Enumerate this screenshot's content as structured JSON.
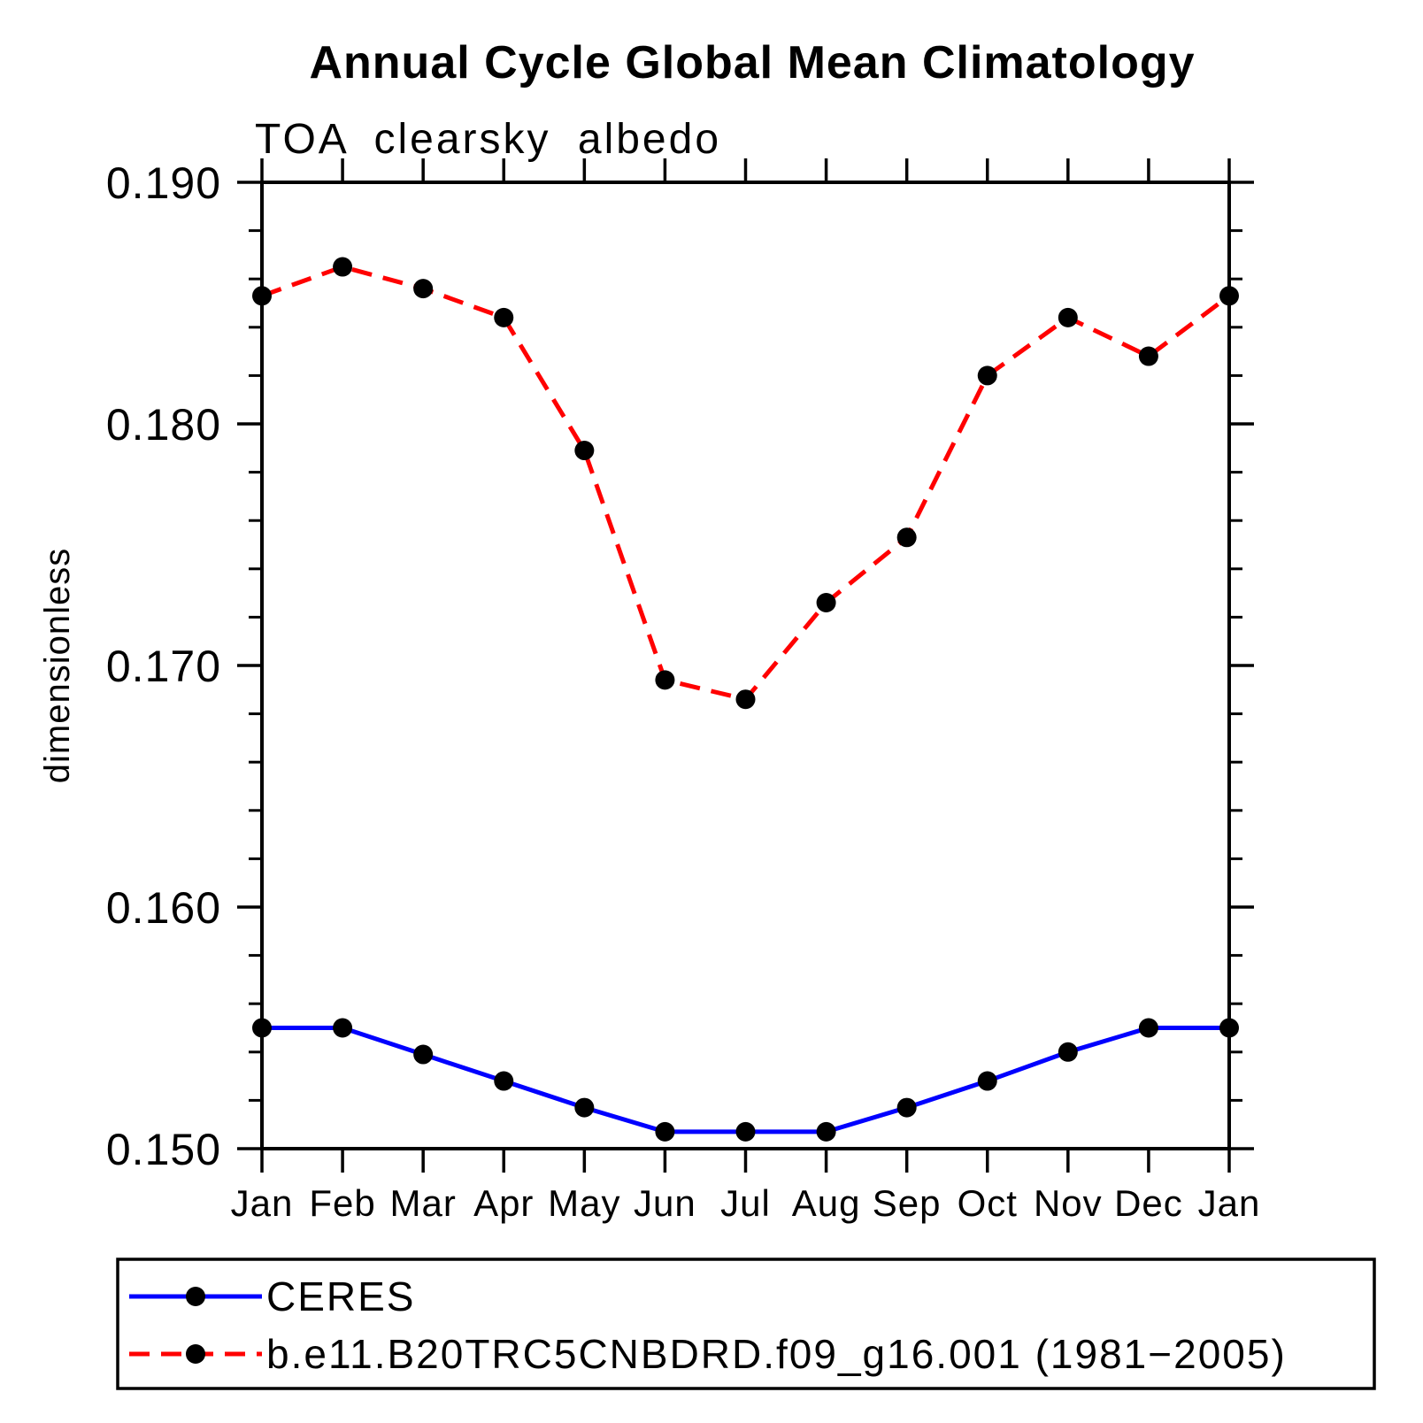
{
  "page_title": "Annual Cycle Global Mean Climatology",
  "chart_data": {
    "type": "line",
    "title": "Annual Cycle Global Mean Climatology",
    "subtitle": "TOA clearsky albedo",
    "ylabel": "dimensionless",
    "xlabel": "",
    "categories": [
      "Jan",
      "Feb",
      "Mar",
      "Apr",
      "May",
      "Jun",
      "Jul",
      "Aug",
      "Sep",
      "Oct",
      "Nov",
      "Dec",
      "Jan"
    ],
    "ylim": [
      0.15,
      0.19
    ],
    "y_major_ticks": [
      0.19,
      0.18,
      0.17,
      0.16,
      0.15
    ],
    "y_tick_labels": [
      "0.190",
      "0.180",
      "0.170",
      "0.160",
      "0.150"
    ],
    "y_minor_interval": 0.002,
    "grid": false,
    "legend_position": "bottom",
    "series": [
      {
        "name": "CERES",
        "color": "#0000ff",
        "style": "solid",
        "marker": "circle",
        "marker_color": "#000000",
        "values": [
          0.155,
          0.155,
          0.1539,
          0.1528,
          0.1517,
          0.1507,
          0.1507,
          0.1507,
          0.1517,
          0.1528,
          0.154,
          0.155,
          0.155
        ]
      },
      {
        "name": "b.e11.B20TRC5CNBDRD.f09_g16.001 (1981−2005)",
        "color": "#ff0000",
        "style": "dashed",
        "marker": "circle",
        "marker_color": "#000000",
        "values": [
          0.1853,
          0.1865,
          0.1856,
          0.1844,
          0.1789,
          0.1694,
          0.1686,
          0.1726,
          0.1753,
          0.182,
          0.1844,
          0.1828,
          0.1853
        ]
      }
    ],
    "colors": {
      "axis": "#000000",
      "background": "#ffffff",
      "ceres_line": "#0000ff",
      "model_line": "#ff0000",
      "marker": "#000000"
    }
  }
}
